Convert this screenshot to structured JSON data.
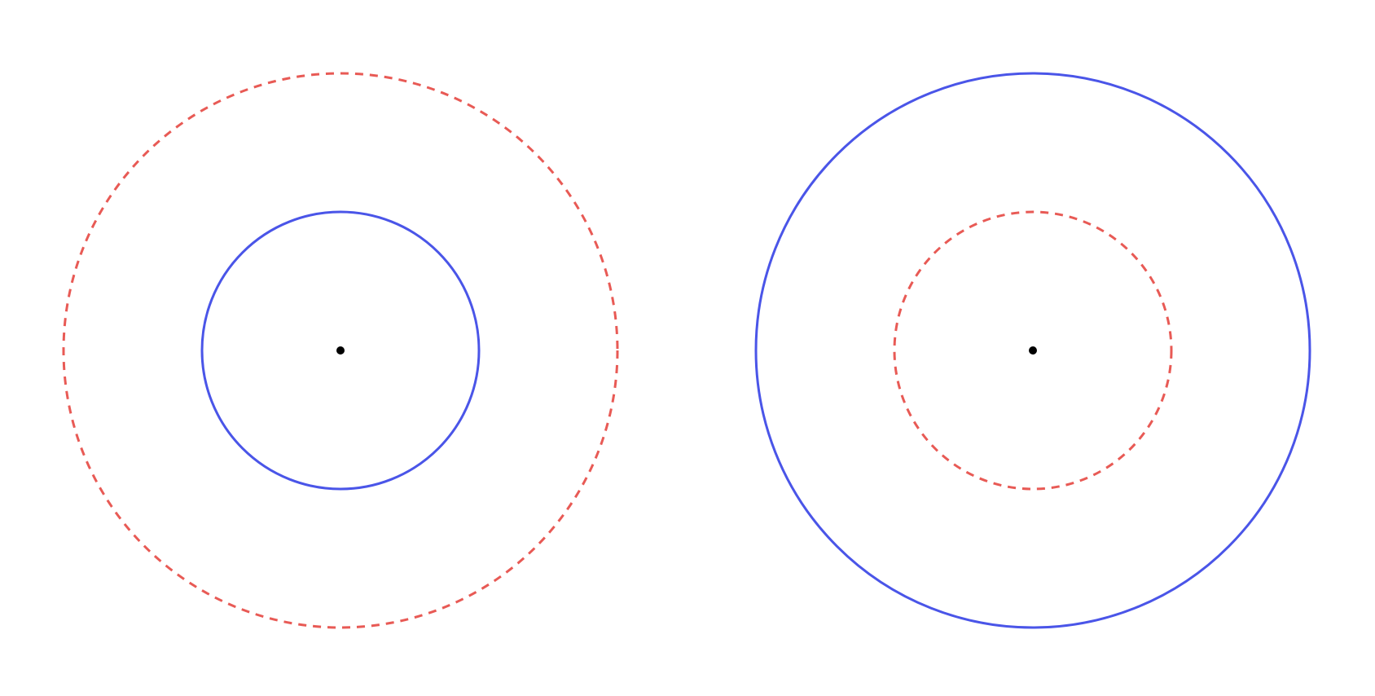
{
  "colors": {
    "solid_stroke": "#4a55e8",
    "dashed_stroke": "#e85a55",
    "center_dot": "#000000",
    "background": "#ffffff"
  },
  "figures": [
    {
      "name": "left-figure",
      "inner_circle_style": "solid",
      "outer_circle_style": "dashed"
    },
    {
      "name": "right-figure",
      "inner_circle_style": "dashed",
      "outer_circle_style": "solid"
    }
  ]
}
